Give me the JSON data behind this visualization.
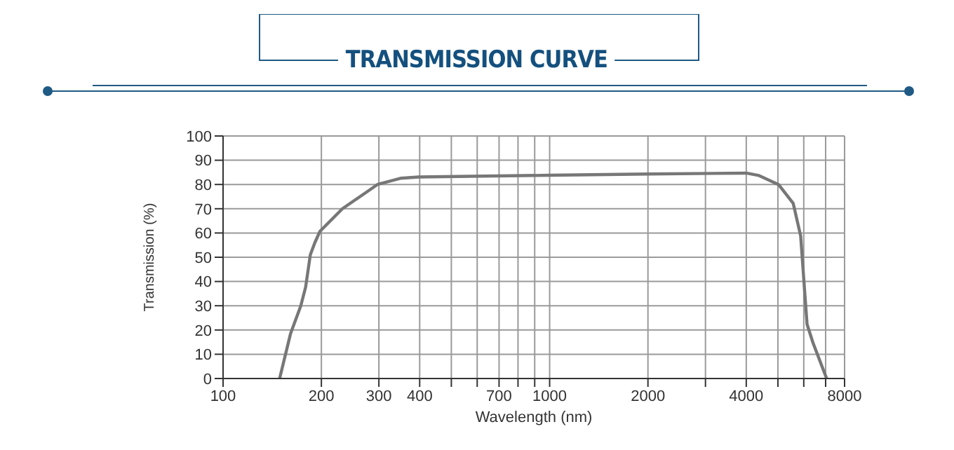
{
  "chart_data": {
    "type": "line",
    "title": "TRANSMISSION CURVE",
    "xlabel": "Wavelength (nm)",
    "ylabel": "Transmission (%)",
    "log": "x",
    "grid": true,
    "color": "#777777",
    "x": [
      149,
      161,
      173,
      179,
      185,
      191,
      198,
      232,
      297,
      351,
      397,
      1000,
      2000,
      4000,
      4375,
      5030,
      5570,
      5870,
      6010,
      6140,
      6400,
      7050
    ],
    "values": [
      0,
      18.6,
      30,
      37.7,
      51,
      56,
      60.7,
      70,
      80,
      82.6,
      83.1,
      83.8,
      84.3,
      84.7,
      83.7,
      79.9,
      72.2,
      58.8,
      39.7,
      22.4,
      14.8,
      0
    ],
    "xlim": [
      100,
      8000
    ],
    "xticks": [
      100,
      200,
      300,
      400,
      {
        "value": 500,
        "label": null
      },
      {
        "value": 600,
        "label": null
      },
      700,
      {
        "value": 800,
        "label": null
      },
      {
        "value": 900,
        "label": null
      },
      1000,
      2000,
      {
        "value": 3000,
        "label": null
      },
      4000,
      {
        "value": 5000,
        "label": null
      },
      {
        "value": 6000,
        "label": null
      },
      {
        "value": 7000,
        "label": null
      },
      8000
    ],
    "ylim": [
      0,
      100
    ],
    "yticks": [
      0,
      10,
      20,
      30,
      40,
      50,
      60,
      70,
      80,
      90,
      100
    ]
  }
}
